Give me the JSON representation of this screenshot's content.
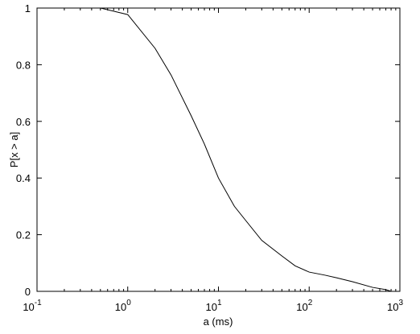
{
  "chart_data": {
    "type": "line",
    "xlabel": "a (ms)",
    "ylabel": "P[x > a]",
    "xscale": "log",
    "xlim": [
      0.1,
      1000
    ],
    "ylim": [
      0,
      1
    ],
    "xticks": [
      {
        "value": 0.1,
        "label": "10",
        "exponent": "-1"
      },
      {
        "value": 1,
        "label": "10",
        "exponent": "0"
      },
      {
        "value": 10,
        "label": "10",
        "exponent": "1"
      },
      {
        "value": 100,
        "label": "10",
        "exponent": "2"
      },
      {
        "value": 1000,
        "label": "10",
        "exponent": "3"
      }
    ],
    "yticks": [
      0,
      0.2,
      0.4,
      0.6,
      0.8,
      1
    ],
    "grid": false,
    "series": [
      {
        "color": "#000000",
        "x": [
          0.5,
          1,
          2,
          3,
          5,
          7,
          10,
          15,
          20,
          30,
          50,
          70,
          100,
          150,
          200,
          300,
          500,
          700,
          800
        ],
        "values": [
          1,
          0.977,
          0.858,
          0.764,
          0.62,
          0.52,
          0.4,
          0.3,
          0.25,
          0.18,
          0.125,
          0.09,
          0.068,
          0.057,
          0.048,
          0.034,
          0.014,
          0.006,
          0
        ]
      }
    ]
  }
}
